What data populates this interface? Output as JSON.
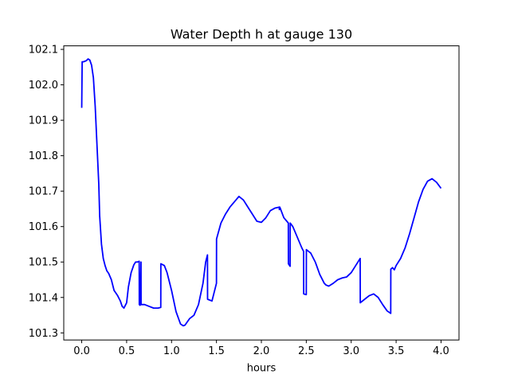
{
  "chart_data": {
    "type": "line",
    "title": "Water Depth h at gauge 130",
    "xlabel": "hours",
    "ylabel": "",
    "xlim": [
      -0.2,
      4.2
    ],
    "ylim": [
      101.28,
      102.11
    ],
    "xticks": [
      "0.0",
      "0.5",
      "1.0",
      "1.5",
      "2.0",
      "2.5",
      "3.0",
      "3.5",
      "4.0"
    ],
    "yticks": [
      "101.3",
      "101.4",
      "101.5",
      "101.6",
      "101.7",
      "101.8",
      "101.9",
      "102.0",
      "102.1"
    ],
    "grid": false,
    "line_color": "#0000ff",
    "series": [
      {
        "x": [
          0.0,
          0.005,
          0.02,
          0.05,
          0.07,
          0.09,
          0.11,
          0.13,
          0.15,
          0.17,
          0.19,
          0.2,
          0.22,
          0.24,
          0.26,
          0.28,
          0.3,
          0.33,
          0.36,
          0.4,
          0.43,
          0.45,
          0.47,
          0.5,
          0.52,
          0.55,
          0.58,
          0.6,
          0.62,
          0.64,
          0.641,
          0.65,
          0.66,
          0.661,
          0.7,
          0.75,
          0.8,
          0.85,
          0.88,
          0.881,
          0.92,
          0.95,
          1.0,
          1.05,
          1.1,
          1.13,
          1.15,
          1.2,
          1.25,
          1.3,
          1.35,
          1.38,
          1.4,
          1.401,
          1.45,
          1.5,
          1.501,
          1.55,
          1.6,
          1.65,
          1.7,
          1.75,
          1.8,
          1.85,
          1.9,
          1.95,
          2.0,
          2.05,
          2.1,
          2.15,
          2.2,
          2.2,
          2.205,
          2.25,
          2.3,
          2.301,
          2.32,
          2.321,
          2.35,
          2.4,
          2.45,
          2.47,
          2.471,
          2.5,
          2.501,
          2.55,
          2.6,
          2.65,
          2.7,
          2.72,
          2.75,
          2.8,
          2.85,
          2.9,
          2.95,
          3.0,
          3.05,
          3.1,
          3.101,
          3.15,
          3.2,
          3.25,
          3.3,
          3.35,
          3.4,
          3.44,
          3.441,
          3.46,
          3.48,
          3.5,
          3.55,
          3.6,
          3.65,
          3.7,
          3.75,
          3.8,
          3.85,
          3.9,
          3.95,
          4.0
        ],
        "values": [
          101.935,
          102.065,
          102.065,
          102.068,
          102.073,
          102.07,
          102.055,
          102.02,
          101.94,
          101.83,
          101.72,
          101.63,
          101.55,
          101.51,
          101.49,
          101.475,
          101.468,
          101.45,
          101.42,
          101.405,
          101.39,
          101.375,
          101.37,
          101.385,
          101.43,
          101.47,
          101.492,
          101.5,
          101.5,
          101.502,
          101.38,
          101.378,
          101.5,
          101.38,
          101.38,
          101.375,
          101.37,
          101.37,
          101.372,
          101.495,
          101.49,
          101.47,
          101.42,
          101.36,
          101.325,
          101.32,
          101.322,
          101.34,
          101.35,
          101.38,
          101.44,
          101.5,
          101.52,
          101.395,
          101.39,
          101.44,
          101.565,
          101.61,
          101.635,
          101.655,
          101.67,
          101.685,
          101.675,
          101.655,
          101.635,
          101.615,
          101.612,
          101.625,
          101.645,
          101.652,
          101.655,
          101.648,
          101.655,
          101.625,
          101.61,
          101.495,
          101.488,
          101.61,
          101.6,
          101.57,
          101.54,
          101.53,
          101.41,
          101.408,
          101.535,
          101.525,
          101.5,
          101.465,
          101.44,
          101.435,
          101.432,
          101.44,
          101.45,
          101.455,
          101.458,
          101.47,
          101.49,
          101.51,
          101.385,
          101.395,
          101.405,
          101.41,
          101.4,
          101.38,
          101.362,
          101.355,
          101.48,
          101.484,
          101.478,
          101.49,
          101.51,
          101.54,
          101.58,
          101.625,
          101.67,
          101.705,
          101.728,
          101.735,
          101.725,
          101.708
        ]
      }
    ]
  }
}
